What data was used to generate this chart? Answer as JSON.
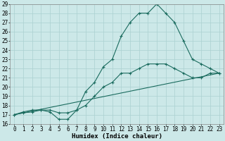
{
  "xlabel": "Humidex (Indice chaleur)",
  "ylabel": "",
  "xlim": [
    -0.5,
    23.5
  ],
  "ylim": [
    16,
    29
  ],
  "xticks": [
    0,
    1,
    2,
    3,
    4,
    5,
    6,
    7,
    8,
    9,
    10,
    11,
    12,
    13,
    14,
    15,
    16,
    17,
    18,
    19,
    20,
    21,
    22,
    23
  ],
  "yticks": [
    16,
    17,
    18,
    19,
    20,
    21,
    22,
    23,
    24,
    25,
    26,
    27,
    28,
    29
  ],
  "bg_color": "#cce8e8",
  "grid_color": "#aad0d0",
  "line_color": "#1a6b5e",
  "line1_x": [
    0,
    1,
    2,
    3,
    4,
    5,
    6,
    7,
    8,
    9,
    10,
    11,
    12,
    13,
    14,
    15,
    16,
    17,
    18,
    19,
    20,
    21,
    22,
    23
  ],
  "line1_y": [
    17,
    17.3,
    17.5,
    17.5,
    17.3,
    16.5,
    16.5,
    17.5,
    19.5,
    20.5,
    22.2,
    23.0,
    25.5,
    27.0,
    28.0,
    28.0,
    29.0,
    28.0,
    27.0,
    25.0,
    23.0,
    22.5,
    22.0,
    21.5
  ],
  "line2_x": [
    0,
    1,
    2,
    3,
    4,
    5,
    6,
    7,
    8,
    9,
    10,
    11,
    12,
    13,
    14,
    15,
    16,
    17,
    18,
    19,
    20,
    21,
    22,
    23
  ],
  "line2_y": [
    17,
    17.2,
    17.3,
    17.5,
    17.5,
    17.2,
    17.2,
    17.5,
    18.0,
    19.0,
    20.0,
    20.5,
    21.5,
    21.5,
    22.0,
    22.5,
    22.5,
    22.5,
    22.0,
    21.5,
    21.0,
    21.0,
    21.5,
    21.5
  ],
  "line3_x": [
    0,
    23
  ],
  "line3_y": [
    17,
    21.5
  ],
  "tick_fontsize": 5.5,
  "label_fontsize": 6.5
}
